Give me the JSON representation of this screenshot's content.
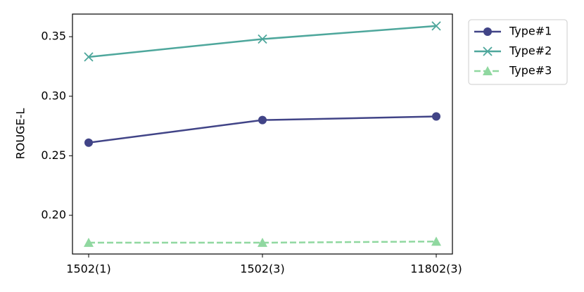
{
  "chart_data": {
    "type": "line",
    "categories": [
      "1502(1)",
      "1502(3)",
      "11802(3)"
    ],
    "y_label": "ROUGE-L",
    "series": [
      {
        "name": "Type#1",
        "color": "#414487",
        "marker": "circle",
        "linestyle": "solid",
        "values": [
          0.261,
          0.28,
          0.283
        ]
      },
      {
        "name": "Type#2",
        "color": "#4ea79c",
        "marker": "x",
        "linestyle": "solid",
        "values": [
          0.333,
          0.348,
          0.359
        ]
      },
      {
        "name": "Type#3",
        "color": "#90d8a0",
        "marker": "triangle",
        "linestyle": "dashed",
        "values": [
          0.177,
          0.177,
          0.178
        ]
      }
    ],
    "ylim": [
      0.1675,
      0.369
    ],
    "yticks": [
      {
        "value": 0.2,
        "label": "0.20"
      },
      0.25,
      {
        "value": 0.3,
        "label": "0.30"
      },
      0.35
    ],
    "grid": false,
    "legend": "outside-upper-right"
  }
}
